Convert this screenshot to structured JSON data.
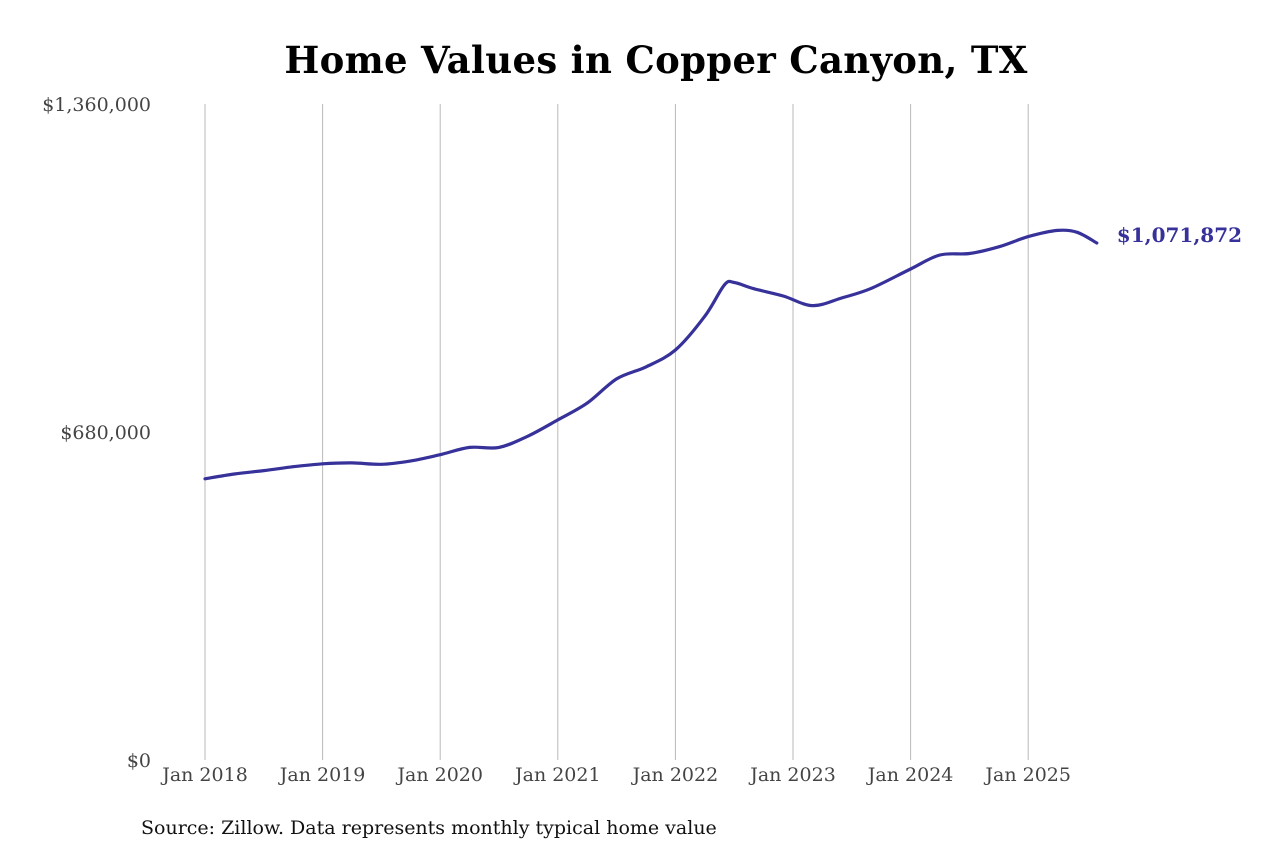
{
  "chart_data": {
    "type": "line",
    "title": "Home Values in Copper Canyon, TX",
    "xlabel": "",
    "ylabel": "",
    "x_ticks": [
      "Jan 2018",
      "Jan 2019",
      "Jan 2020",
      "Jan 2021",
      "Jan 2022",
      "Jan 2023",
      "Jan 2024",
      "Jan 2025"
    ],
    "y_ticks": [
      "$0",
      "$680,000",
      "$1,360,000"
    ],
    "ylim": [
      0,
      1360000
    ],
    "xlim": [
      "2018-01",
      "2025-08"
    ],
    "grid": "vertical",
    "line_color": "#37319a",
    "series": [
      {
        "end_label": "$1,071,872",
        "points": [
          {
            "x": "2018-01",
            "y": 583000
          },
          {
            "x": "2018-04",
            "y": 593000
          },
          {
            "x": "2018-07",
            "y": 600000
          },
          {
            "x": "2018-10",
            "y": 608000
          },
          {
            "x": "2019-01",
            "y": 614000
          },
          {
            "x": "2019-04",
            "y": 616000
          },
          {
            "x": "2019-07",
            "y": 613000
          },
          {
            "x": "2019-10",
            "y": 620000
          },
          {
            "x": "2020-01",
            "y": 633000
          },
          {
            "x": "2020-04",
            "y": 648000
          },
          {
            "x": "2020-07",
            "y": 648000
          },
          {
            "x": "2020-10",
            "y": 672000
          },
          {
            "x": "2021-01",
            "y": 705000
          },
          {
            "x": "2021-04",
            "y": 740000
          },
          {
            "x": "2021-07",
            "y": 790000
          },
          {
            "x": "2021-10",
            "y": 815000
          },
          {
            "x": "2022-01",
            "y": 850000
          },
          {
            "x": "2022-04",
            "y": 920000
          },
          {
            "x": "2022-06",
            "y": 985000
          },
          {
            "x": "2022-07",
            "y": 990000
          },
          {
            "x": "2022-09",
            "y": 977000
          },
          {
            "x": "2022-12",
            "y": 962000
          },
          {
            "x": "2023-03",
            "y": 942000
          },
          {
            "x": "2023-06",
            "y": 958000
          },
          {
            "x": "2023-09",
            "y": 978000
          },
          {
            "x": "2024-01",
            "y": 1018000
          },
          {
            "x": "2024-04",
            "y": 1047000
          },
          {
            "x": "2024-07",
            "y": 1050000
          },
          {
            "x": "2024-10",
            "y": 1064000
          },
          {
            "x": "2025-01",
            "y": 1085000
          },
          {
            "x": "2025-04",
            "y": 1098000
          },
          {
            "x": "2025-06",
            "y": 1094000
          },
          {
            "x": "2025-08",
            "y": 1071872
          }
        ]
      }
    ]
  },
  "source_note": "Source: Zillow. Data represents monthly typical home value"
}
